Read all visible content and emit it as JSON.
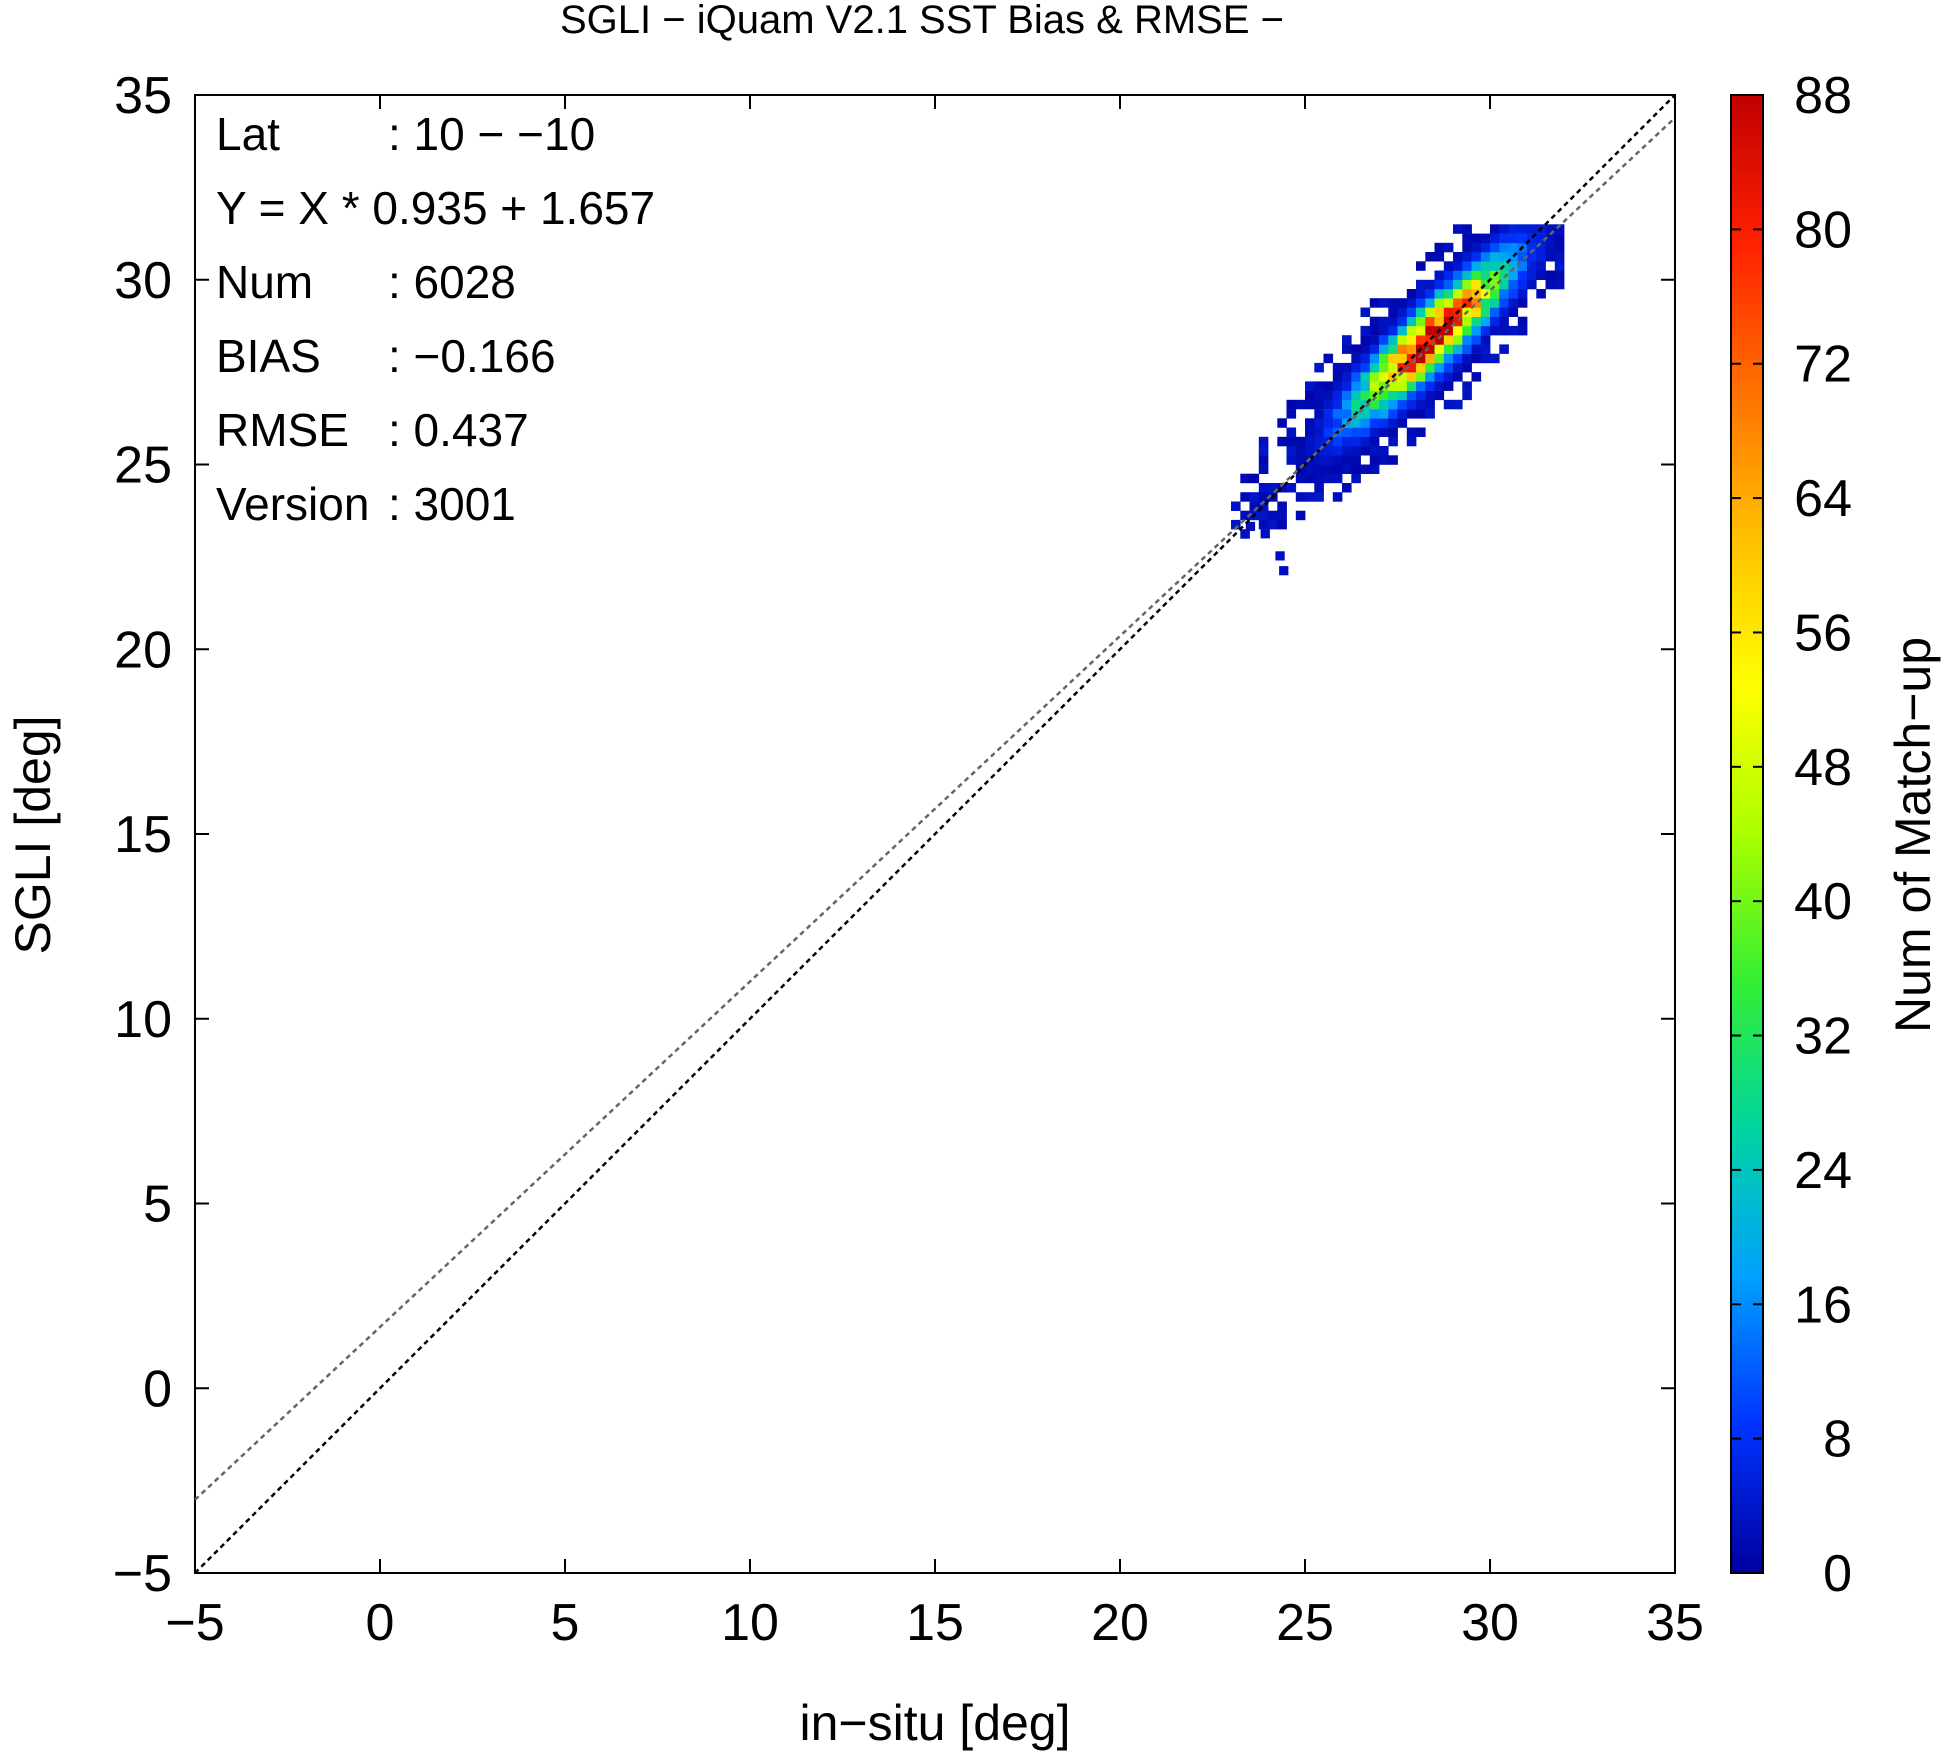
{
  "chart_data": {
    "type": "heatmap",
    "title": "SGLI − iQuam V2.1 SST Bias & RMSE  −",
    "xlabel": "in−situ [deg]",
    "ylabel": "SGLI [deg]",
    "xlim": [
      -5,
      35
    ],
    "ylim": [
      -5,
      35
    ],
    "x_ticks": [
      "−5",
      "0",
      "5",
      "10",
      "15",
      "20",
      "25",
      "30",
      "35"
    ],
    "y_ticks": [
      "−5",
      "0",
      "5",
      "10",
      "15",
      "20",
      "25",
      "30",
      "35"
    ],
    "grid": false,
    "stats": [
      {
        "label": "Lat",
        "value": ": 10 − −10"
      },
      {
        "label": "Y = X * 0.935 + 1.657",
        "value": ""
      },
      {
        "label": "Num",
        "value": ": 6028"
      },
      {
        "label": "BIAS",
        "value": ": −0.166"
      },
      {
        "label": "RMSE",
        "value": ": 0.437"
      },
      {
        "label": "Version",
        "value": ": 3001"
      }
    ],
    "lines": [
      {
        "type": "one-to-one",
        "slope": 1,
        "intercept": 0,
        "style": "dotted",
        "color": "#000000"
      },
      {
        "type": "regression",
        "slope": 0.935,
        "intercept": 1.657,
        "style": "dotted",
        "color": "#666666"
      }
    ],
    "colorbar": {
      "label": "Num of Match−up",
      "range": [
        0,
        88
      ],
      "ticks": [
        "0",
        "8",
        "16",
        "24",
        "32",
        "40",
        "48",
        "56",
        "64",
        "72",
        "80",
        "88"
      ],
      "colors": [
        "#0000a0",
        "#0033ff",
        "#00a0ff",
        "#00d4a0",
        "#33ee33",
        "#aaff00",
        "#ffff00",
        "#ffc000",
        "#ff7000",
        "#ff2000",
        "#c00000"
      ]
    },
    "heatmap": {
      "bin_size": 0.25,
      "density_center": [
        28.3,
        28.3
      ],
      "extent_x": [
        23.0,
        31.8
      ],
      "extent_y": [
        22.0,
        31.5
      ],
      "peak_count": 88
    }
  }
}
